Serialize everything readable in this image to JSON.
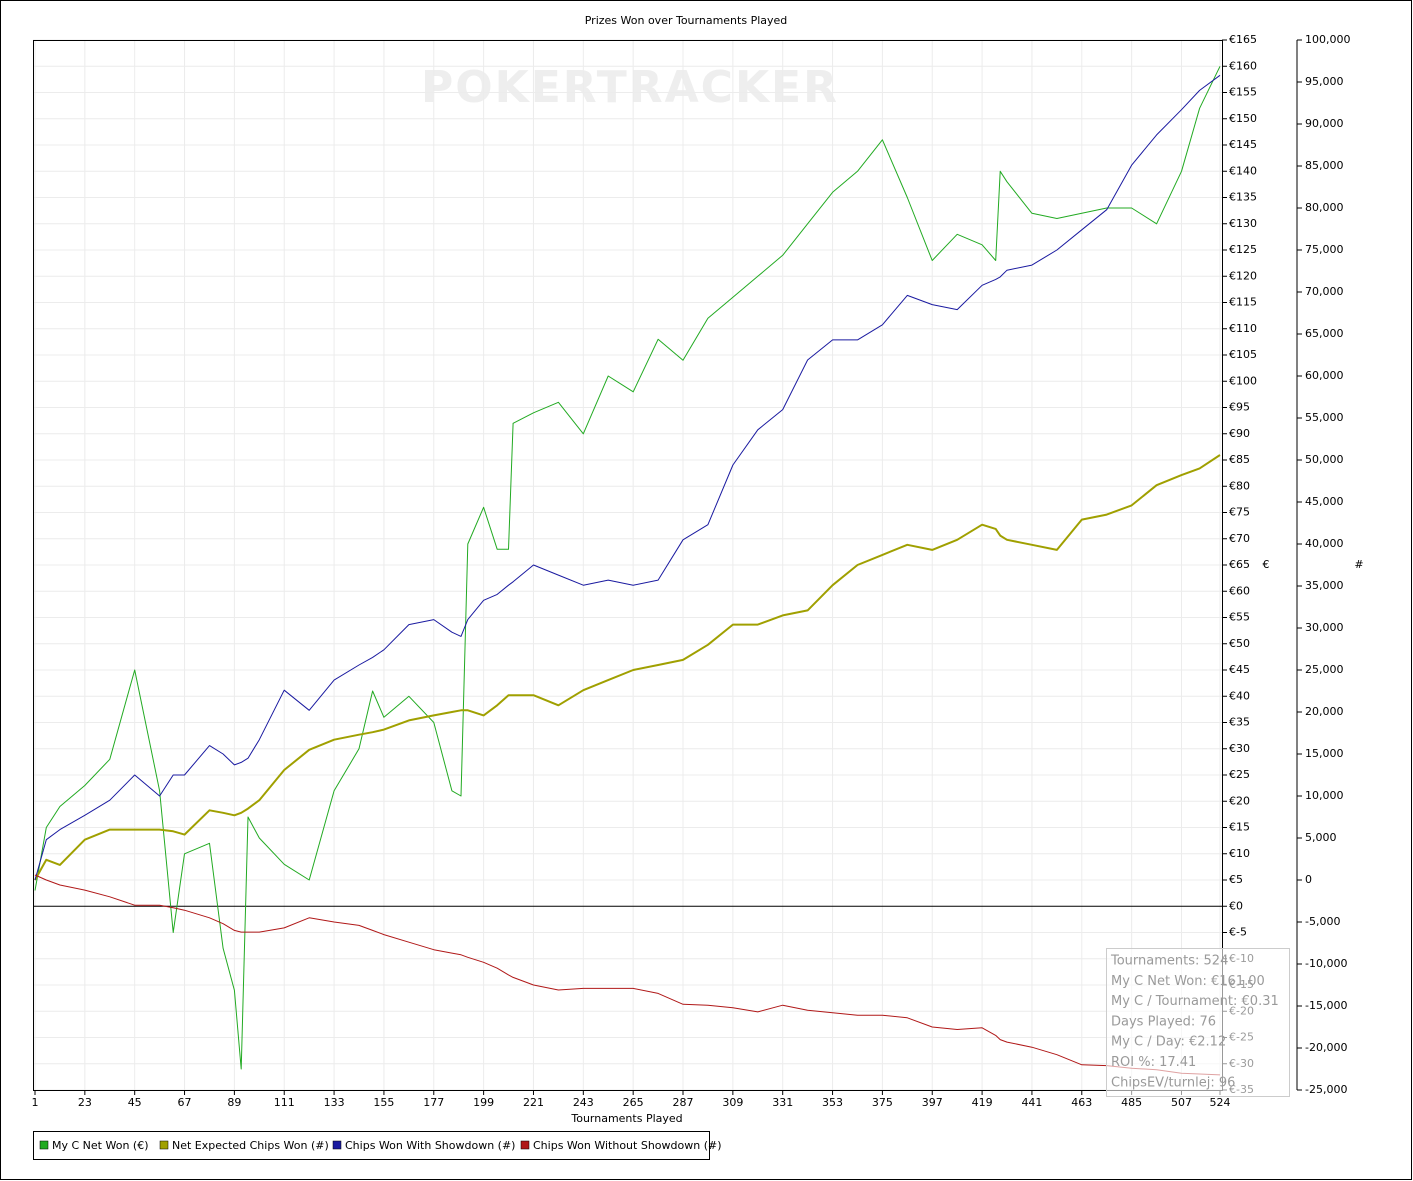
{
  "chart_data": {
    "type": "line",
    "title": "Prizes Won over Tournaments Played",
    "watermark": "POKERTRACKER",
    "xlabel": "Tournaments Played",
    "ylabel": "€",
    "y2label": "#",
    "grid": true,
    "x": [
      1,
      6,
      12,
      23,
      34,
      45,
      56,
      62,
      67,
      78,
      84,
      89,
      92,
      95,
      100,
      111,
      122,
      133,
      144,
      150,
      155,
      166,
      177,
      185,
      189,
      192,
      199,
      205,
      210,
      212,
      221,
      232,
      243,
      254,
      265,
      276,
      287,
      298,
      309,
      320,
      331,
      342,
      353,
      364,
      375,
      386,
      397,
      408,
      419,
      425,
      427,
      430,
      441,
      452,
      463,
      474,
      485,
      496,
      507,
      515,
      524
    ],
    "xlim": [
      1,
      524
    ],
    "xticks": [
      1,
      23,
      45,
      67,
      89,
      111,
      133,
      155,
      177,
      199,
      221,
      243,
      265,
      287,
      309,
      331,
      353,
      375,
      397,
      419,
      441,
      463,
      485,
      507,
      524
    ],
    "ylim": [
      -35,
      165
    ],
    "yticks": [
      {
        "value": 165,
        "label": "€165"
      },
      {
        "value": 160,
        "label": "€160"
      },
      {
        "value": 155,
        "label": "€155"
      },
      {
        "value": 150,
        "label": "€150"
      },
      {
        "value": 145,
        "label": "€145"
      },
      {
        "value": 140,
        "label": "€140"
      },
      {
        "value": 135,
        "label": "€135"
      },
      {
        "value": 130,
        "label": "€130"
      },
      {
        "value": 125,
        "label": "€125"
      },
      {
        "value": 120,
        "label": "€120"
      },
      {
        "value": 115,
        "label": "€115"
      },
      {
        "value": 110,
        "label": "€110"
      },
      {
        "value": 105,
        "label": "€105"
      },
      {
        "value": 100,
        "label": "€100"
      },
      {
        "value": 95,
        "label": "€95"
      },
      {
        "value": 90,
        "label": "€90"
      },
      {
        "value": 85,
        "label": "€85"
      },
      {
        "value": 80,
        "label": "€80"
      },
      {
        "value": 75,
        "label": "€75"
      },
      {
        "value": 70,
        "label": "€70"
      },
      {
        "value": 65,
        "label": "€65"
      },
      {
        "value": 60,
        "label": "€60"
      },
      {
        "value": 55,
        "label": "€55"
      },
      {
        "value": 50,
        "label": "€50"
      },
      {
        "value": 45,
        "label": "€45"
      },
      {
        "value": 40,
        "label": "€40"
      },
      {
        "value": 35,
        "label": "€35"
      },
      {
        "value": 30,
        "label": "€30"
      },
      {
        "value": 25,
        "label": "€25"
      },
      {
        "value": 20,
        "label": "€20"
      },
      {
        "value": 15,
        "label": "€15"
      },
      {
        "value": 10,
        "label": "€10"
      },
      {
        "value": 5,
        "label": "€5"
      },
      {
        "value": 0,
        "label": "€0"
      },
      {
        "value": -5,
        "label": "€-5"
      },
      {
        "value": -10,
        "label": "€-10"
      },
      {
        "value": -15,
        "label": "€-15"
      },
      {
        "value": -20,
        "label": "€-20"
      },
      {
        "value": -25,
        "label": "€-25"
      },
      {
        "value": -30,
        "label": "€-30"
      },
      {
        "value": -35,
        "label": "€-35"
      }
    ],
    "y2lim": [
      -25000,
      100000
    ],
    "y2ticks": [
      {
        "value": 100000,
        "label": "100,000"
      },
      {
        "value": 95000,
        "label": "95,000"
      },
      {
        "value": 90000,
        "label": "90,000"
      },
      {
        "value": 85000,
        "label": "85,000"
      },
      {
        "value": 80000,
        "label": "80,000"
      },
      {
        "value": 75000,
        "label": "75,000"
      },
      {
        "value": 70000,
        "label": "70,000"
      },
      {
        "value": 65000,
        "label": "65,000"
      },
      {
        "value": 60000,
        "label": "60,000"
      },
      {
        "value": 55000,
        "label": "55,000"
      },
      {
        "value": 50000,
        "label": "50,000"
      },
      {
        "value": 45000,
        "label": "45,000"
      },
      {
        "value": 40000,
        "label": "40,000"
      },
      {
        "value": 35000,
        "label": "35,000"
      },
      {
        "value": 30000,
        "label": "30,000"
      },
      {
        "value": 25000,
        "label": "25,000"
      },
      {
        "value": 20000,
        "label": "20,000"
      },
      {
        "value": 15000,
        "label": "15,000"
      },
      {
        "value": 10000,
        "label": "10,000"
      },
      {
        "value": 5000,
        "label": "5,000"
      },
      0,
      {
        "value": -5000,
        "label": "-5,000"
      },
      {
        "value": -10000,
        "label": "-10,000"
      },
      {
        "value": -15000,
        "label": "-15,000"
      },
      {
        "value": -20000,
        "label": "-20,000"
      },
      {
        "value": -25000,
        "label": "-25,000"
      }
    ],
    "series": [
      {
        "name": "My C Net Won (€)",
        "color": "#22aa22",
        "axis": "y",
        "width": 1,
        "values": [
          3,
          15,
          19,
          23,
          28,
          45,
          22,
          -5,
          10,
          12,
          -8,
          -16,
          -31,
          17,
          13,
          8,
          5,
          22,
          30,
          41,
          36,
          40,
          35,
          22,
          21,
          69,
          76,
          68,
          68,
          92,
          94,
          96,
          90,
          101,
          98,
          108,
          104,
          112,
          116,
          120,
          124,
          130,
          136,
          140,
          146,
          135,
          123,
          128,
          126,
          123,
          140,
          138,
          132,
          131,
          132,
          133,
          133,
          130,
          140,
          152,
          160
        ]
      },
      {
        "name": "Net Expected Chips Won (#)",
        "color": "#a0a000",
        "axis": "y2",
        "width": 2,
        "values": [
          0,
          2400,
          1800,
          4800,
          6000,
          6000,
          6000,
          5800,
          5400,
          8300,
          8000,
          7700,
          8000,
          8500,
          9500,
          13100,
          15500,
          16700,
          17300,
          17600,
          17900,
          19000,
          19600,
          20000,
          20200,
          20200,
          19600,
          20800,
          22000,
          22000,
          22000,
          20800,
          22600,
          23800,
          25000,
          25600,
          26200,
          28000,
          30400,
          30400,
          31500,
          32100,
          35100,
          37500,
          38700,
          39900,
          39300,
          40500,
          42300,
          41800,
          41000,
          40500,
          39900,
          39300,
          42900,
          43500,
          44600,
          47000,
          48200,
          49000,
          50600
        ]
      },
      {
        "name": "Chips Won With Showdown (#)",
        "color": "#1a1aa0",
        "axis": "y2",
        "width": 1,
        "values": [
          0,
          4800,
          6000,
          7700,
          9500,
          12500,
          10000,
          12500,
          12500,
          16000,
          15000,
          13700,
          14000,
          14500,
          16700,
          22600,
          20200,
          23800,
          25600,
          26500,
          27400,
          30400,
          31000,
          29500,
          29000,
          31000,
          33300,
          34000,
          35100,
          35500,
          37500,
          36300,
          35100,
          35700,
          35100,
          35700,
          40500,
          42300,
          49400,
          53600,
          56000,
          61900,
          64300,
          64300,
          66100,
          69600,
          68500,
          67900,
          70800,
          71500,
          71800,
          72600,
          73200,
          75000,
          77400,
          79800,
          85100,
          88700,
          91700,
          94000,
          95800
        ]
      },
      {
        "name": "Chips Won Without Showdown (#)",
        "color": "#b01818",
        "axis": "y2",
        "width": 1,
        "values": [
          600,
          0,
          -600,
          -1200,
          -2000,
          -3000,
          -3000,
          -3300,
          -3600,
          -4500,
          -5200,
          -6000,
          -6200,
          -6200,
          -6200,
          -5700,
          -4500,
          -5000,
          -5400,
          -6000,
          -6500,
          -7400,
          -8300,
          -8700,
          -8900,
          -9200,
          -9800,
          -10500,
          -11300,
          -11600,
          -12500,
          -13100,
          -12900,
          -12900,
          -12900,
          -13500,
          -14800,
          -14900,
          -15200,
          -15700,
          -14900,
          -15500,
          -15800,
          -16100,
          -16100,
          -16400,
          -17500,
          -17800,
          -17600,
          -18500,
          -19000,
          -19300,
          -19900,
          -20800,
          -22000,
          -22100,
          -22400,
          -22600,
          -23000,
          -23100,
          -23200
        ]
      }
    ],
    "stats": [
      "Tournaments: 524",
      "My C Net Won: €161.00",
      "My C / Tournament: €0.31",
      "Days Played: 76",
      "My C / Day: €2.12",
      "ROI %: 17.41",
      "ChipsEV/turnlej: 96"
    ]
  }
}
